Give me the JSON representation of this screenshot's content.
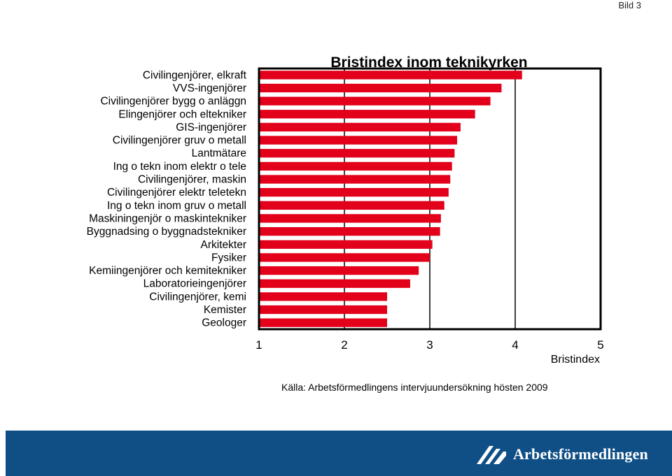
{
  "slide_label": "Bild 3",
  "chart_data": {
    "type": "bar",
    "orientation": "horizontal",
    "title": "Bristindex inom teknikyrken",
    "xlabel": "Bristindex",
    "ylabel": "",
    "xlim": [
      1,
      5
    ],
    "xticks": [
      "1",
      "2",
      "3",
      "4",
      "5"
    ],
    "gridlines_at": [
      2,
      3,
      4
    ],
    "categories": [
      "Civilingenjörer, elkraft",
      "VVS-ingenjörer",
      "Civilingenjörer bygg o anläggn",
      "Elingenjörer och eltekniker",
      "GIS-ingenjörer",
      "Civilingenjörer gruv o metall",
      "Lantmätare",
      "Ing o tekn inom elektr o tele",
      "Civilingenjörer, maskin",
      "Civilingenjörer elektr teletekn",
      "Ing o tekn inom gruv o metall",
      "Maskiningenjör o maskintekniker",
      "Byggnadsing o byggnadstekniker",
      "Arkitekter",
      "Fysiker",
      "Kemiingenjörer och kemitekniker",
      "Laboratorieingenjörer",
      "Civilingenjörer, kemi",
      "Kemister",
      "Geologer"
    ],
    "values": [
      4.08,
      3.84,
      3.71,
      3.53,
      3.36,
      3.32,
      3.29,
      3.26,
      3.24,
      3.22,
      3.17,
      3.13,
      3.12,
      3.03,
      3.0,
      2.87,
      2.77,
      2.5,
      2.5,
      2.5
    ],
    "bar_color": "#e2001a",
    "source": "Källa: Arbetsförmedlingens intervjuundersökning hösten 2009"
  },
  "footer": {
    "brand_name": "Arbetsförmedlingen",
    "color": "#0f4f86"
  }
}
